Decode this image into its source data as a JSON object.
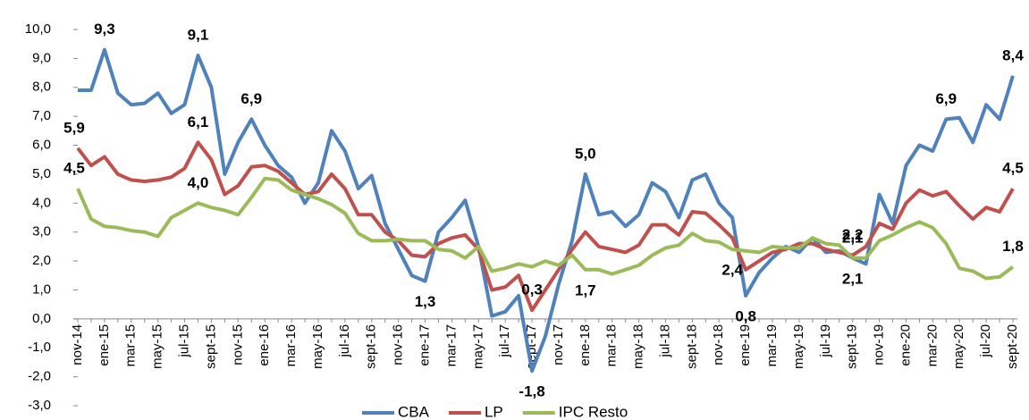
{
  "chart_data": {
    "type": "line",
    "categories": [
      "nov-14",
      null,
      "ene-15",
      null,
      "mar-15",
      null,
      "may-15",
      null,
      "jul-15",
      null,
      "sept-15",
      null,
      "nov-15",
      null,
      "ene-16",
      null,
      "mar-16",
      null,
      "may-16",
      null,
      "jul-16",
      null,
      "sept-16",
      null,
      "nov-16",
      null,
      "ene-17",
      null,
      "mar-17",
      null,
      "may-17",
      null,
      "jul-17",
      null,
      "sept-17",
      null,
      "nov-17",
      null,
      "ene-18",
      null,
      "mar-18",
      null,
      "may-18",
      null,
      "jul-18",
      null,
      "sept-18",
      null,
      "nov-18",
      null,
      "ene-19",
      null,
      "mar-19",
      null,
      "may-19",
      null,
      "jul-19",
      null,
      "sept-19",
      null,
      "nov-19",
      null,
      "ene-20",
      null,
      "mar-20",
      null,
      "may-20",
      null,
      "jul-20",
      null,
      "sept-20"
    ],
    "ylim": [
      -3,
      10
    ],
    "yticks": [
      {
        "value": -3,
        "label": "-3,0"
      },
      {
        "value": -2,
        "label": "-2,0"
      },
      {
        "value": -1,
        "label": "-1,0"
      },
      {
        "value": 0,
        "label": "0,0"
      },
      {
        "value": 1,
        "label": "1,0"
      },
      {
        "value": 2,
        "label": "2,0"
      },
      {
        "value": 3,
        "label": "3,0"
      },
      {
        "value": 4,
        "label": "4,0"
      },
      {
        "value": 5,
        "label": "5,0"
      },
      {
        "value": 6,
        "label": "6,0"
      },
      {
        "value": 7,
        "label": "7,0"
      },
      {
        "value": 8,
        "label": "8,0"
      },
      {
        "value": 9,
        "label": "9,0"
      },
      {
        "value": 10,
        "label": "10,0"
      }
    ],
    "legend": "bottom",
    "series": [
      {
        "name": "CBA",
        "color": "#4f81bd",
        "values": [
          7.9,
          7.9,
          9.3,
          7.8,
          7.4,
          7.45,
          7.8,
          7.1,
          7.4,
          9.1,
          8.0,
          5.0,
          6.1,
          6.9,
          6.0,
          5.3,
          4.9,
          4.0,
          4.7,
          6.5,
          5.8,
          4.5,
          4.95,
          3.3,
          2.4,
          1.5,
          1.3,
          3.0,
          3.5,
          4.1,
          2.5,
          0.1,
          0.25,
          0.8,
          -1.8,
          -0.6,
          1.2,
          2.7,
          5.0,
          3.6,
          3.7,
          3.2,
          3.6,
          4.7,
          4.4,
          3.5,
          4.8,
          5.0,
          4.0,
          3.5,
          0.8,
          1.6,
          2.1,
          2.5,
          2.3,
          2.8,
          2.3,
          2.35,
          2.1,
          1.9,
          4.3,
          3.3,
          5.3,
          6.0,
          5.8,
          6.9,
          6.95,
          6.1,
          7.4,
          6.9,
          8.4
        ],
        "value_labels": [
          null,
          null,
          "9,3",
          null,
          null,
          null,
          null,
          null,
          null,
          "9,1",
          null,
          null,
          null,
          "6,9",
          null,
          null,
          null,
          null,
          null,
          null,
          null,
          null,
          null,
          null,
          null,
          null,
          "1,3",
          null,
          null,
          null,
          null,
          null,
          null,
          null,
          "-1,8",
          null,
          null,
          null,
          "5,0",
          null,
          null,
          null,
          null,
          null,
          null,
          null,
          null,
          null,
          null,
          null,
          "0,8",
          null,
          null,
          null,
          null,
          null,
          null,
          null,
          "2,1",
          null,
          null,
          null,
          null,
          null,
          null,
          "6,9",
          null,
          null,
          null,
          null,
          "8,4"
        ]
      },
      {
        "name": "LP",
        "color": "#c0504d",
        "values": [
          5.9,
          5.3,
          5.6,
          5.0,
          4.8,
          4.75,
          4.8,
          4.9,
          5.2,
          6.1,
          5.5,
          4.3,
          4.6,
          5.25,
          5.3,
          5.1,
          4.7,
          4.3,
          4.4,
          5.0,
          4.5,
          3.6,
          3.6,
          3.0,
          2.7,
          2.2,
          2.15,
          2.6,
          2.8,
          2.9,
          2.4,
          1.0,
          1.1,
          1.5,
          0.3,
          1.0,
          1.7,
          2.4,
          3.0,
          2.5,
          2.4,
          2.3,
          2.55,
          3.25,
          3.25,
          2.9,
          3.7,
          3.65,
          3.25,
          2.8,
          1.7,
          2.0,
          2.3,
          2.4,
          2.6,
          2.6,
          2.4,
          2.3,
          2.2,
          2.5,
          3.3,
          3.1,
          4.0,
          4.45,
          4.25,
          4.4,
          3.9,
          3.45,
          3.85,
          3.7,
          4.5
        ],
        "value_labels": [
          "5,9",
          null,
          null,
          null,
          null,
          null,
          null,
          null,
          null,
          "6,1",
          null,
          null,
          null,
          null,
          null,
          null,
          null,
          null,
          null,
          null,
          null,
          null,
          null,
          null,
          null,
          null,
          null,
          null,
          null,
          null,
          null,
          null,
          null,
          null,
          "0,3",
          null,
          null,
          null,
          null,
          null,
          null,
          null,
          null,
          null,
          null,
          null,
          null,
          null,
          null,
          null,
          null,
          null,
          null,
          null,
          null,
          null,
          null,
          null,
          "2,2",
          null,
          null,
          null,
          null,
          null,
          null,
          null,
          null,
          null,
          null,
          null,
          "4,5"
        ]
      },
      {
        "name": "IPC Resto",
        "color": "#9bbb59",
        "values": [
          4.5,
          3.45,
          3.2,
          3.15,
          3.05,
          3.0,
          2.85,
          3.5,
          3.75,
          4.0,
          3.85,
          3.75,
          3.6,
          4.2,
          4.85,
          4.8,
          4.45,
          4.3,
          4.15,
          3.95,
          3.65,
          2.95,
          2.7,
          2.7,
          2.75,
          2.7,
          2.7,
          2.4,
          2.35,
          2.1,
          2.5,
          1.65,
          1.75,
          1.9,
          1.8,
          2.0,
          1.85,
          2.2,
          1.7,
          1.7,
          1.55,
          1.7,
          1.85,
          2.2,
          2.45,
          2.55,
          2.95,
          2.7,
          2.65,
          2.4,
          2.35,
          2.3,
          2.5,
          2.45,
          2.45,
          2.8,
          2.6,
          2.55,
          2.1,
          2.1,
          2.7,
          2.9,
          3.15,
          3.35,
          3.15,
          2.6,
          1.75,
          1.65,
          1.4,
          1.45,
          1.8
        ],
        "value_labels": [
          "4,5",
          null,
          null,
          null,
          null,
          null,
          null,
          null,
          null,
          "4,0",
          null,
          null,
          null,
          null,
          null,
          null,
          null,
          null,
          null,
          null,
          null,
          null,
          null,
          null,
          null,
          null,
          null,
          null,
          null,
          null,
          null,
          null,
          null,
          null,
          null,
          null,
          null,
          null,
          "1,7",
          null,
          null,
          null,
          null,
          null,
          null,
          null,
          null,
          null,
          null,
          "2,4",
          null,
          null,
          null,
          null,
          null,
          null,
          null,
          null,
          "2,1",
          null,
          null,
          null,
          null,
          null,
          null,
          null,
          null,
          null,
          null,
          null,
          "1,8"
        ]
      }
    ]
  }
}
